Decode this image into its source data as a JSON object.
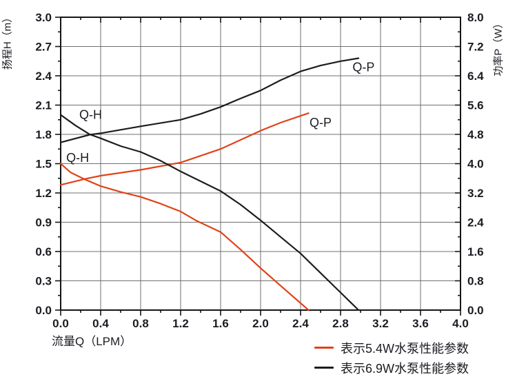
{
  "chart_data": {
    "type": "line",
    "title": "",
    "grid": true,
    "legend_position": "bottom-right",
    "x_axis": {
      "label": "流量Q（LPM）",
      "min": 0,
      "max": 4.0,
      "major_step": 0.4,
      "minor_step": 0.2,
      "tick_format_decimals": 1
    },
    "y_left_axis": {
      "label": "扬程H（m）",
      "min": 0,
      "max": 3.0,
      "major_step": 0.3,
      "minor_step": 0.15,
      "tick_format_decimals": 1
    },
    "y_right_axis": {
      "label": "功率P（W）",
      "min": 0,
      "max": 8.0,
      "major_step": 0.8,
      "minor_step": 0.4,
      "tick_format_decimals": 1
    },
    "series": [
      {
        "id": "qh-54w",
        "name": "5.4W pump Q-H",
        "axis": "left",
        "color": "#e24118",
        "curve_label": {
          "text": "Q-H",
          "x": 0.17,
          "y": 1.56
        },
        "points": [
          [
            0,
            1.5
          ],
          [
            0.1,
            1.41
          ],
          [
            0.24,
            1.34
          ],
          [
            0.4,
            1.27
          ],
          [
            0.6,
            1.21
          ],
          [
            0.8,
            1.16
          ],
          [
            1.0,
            1.09
          ],
          [
            1.2,
            1.01
          ],
          [
            1.35,
            0.92
          ],
          [
            1.6,
            0.8
          ],
          [
            1.8,
            0.62
          ],
          [
            2.0,
            0.43
          ],
          [
            2.2,
            0.25
          ],
          [
            2.48,
            0.0
          ]
        ]
      },
      {
        "id": "qp-54w",
        "name": "5.4W pump Q-P",
        "axis": "right",
        "color": "#e24118",
        "curve_label": {
          "text": "Q-P",
          "x": 2.6,
          "y": 5.12
        },
        "points": [
          [
            0,
            3.42
          ],
          [
            0.24,
            3.58
          ],
          [
            0.4,
            3.67
          ],
          [
            0.8,
            3.83
          ],
          [
            1.2,
            4.03
          ],
          [
            1.6,
            4.4
          ],
          [
            1.8,
            4.65
          ],
          [
            2.0,
            4.9
          ],
          [
            2.2,
            5.12
          ],
          [
            2.48,
            5.38
          ]
        ]
      },
      {
        "id": "qh-69w",
        "name": "6.9W pump Q-H",
        "axis": "left",
        "color": "#1c1c1e",
        "curve_label": {
          "text": "Q-H",
          "x": 0.3,
          "y": 2.0
        },
        "points": [
          [
            0,
            2.0
          ],
          [
            0.15,
            1.89
          ],
          [
            0.29,
            1.8
          ],
          [
            0.4,
            1.76
          ],
          [
            0.6,
            1.68
          ],
          [
            0.8,
            1.62
          ],
          [
            1.0,
            1.53
          ],
          [
            1.2,
            1.42
          ],
          [
            1.4,
            1.32
          ],
          [
            1.6,
            1.22
          ],
          [
            1.8,
            1.08
          ],
          [
            2.0,
            0.92
          ],
          [
            2.2,
            0.75
          ],
          [
            2.4,
            0.58
          ],
          [
            2.6,
            0.38
          ],
          [
            2.8,
            0.18
          ],
          [
            2.98,
            0.0
          ]
        ]
      },
      {
        "id": "qp-69w",
        "name": "6.9W pump Q-P",
        "axis": "right",
        "color": "#1c1c1e",
        "curve_label": {
          "text": "Q-P",
          "x": 3.03,
          "y": 6.64
        },
        "points": [
          [
            0,
            4.58
          ],
          [
            0.29,
            4.79
          ],
          [
            0.4,
            4.83
          ],
          [
            0.8,
            5.02
          ],
          [
            1.2,
            5.2
          ],
          [
            1.4,
            5.36
          ],
          [
            1.6,
            5.55
          ],
          [
            1.8,
            5.78
          ],
          [
            2.0,
            6.0
          ],
          [
            2.2,
            6.28
          ],
          [
            2.4,
            6.52
          ],
          [
            2.6,
            6.68
          ],
          [
            2.8,
            6.8
          ],
          [
            2.98,
            6.88
          ]
        ]
      }
    ],
    "legend": [
      {
        "series_color": "#e24118",
        "label": "表示5.4W水泵性能参数"
      },
      {
        "series_color": "#1c1c1e",
        "label": "表示6.9W水泵性能参数"
      }
    ]
  },
  "colors": {
    "red_series": "#e24118",
    "black_series": "#1c1c1e",
    "grid": "#6f6f6f",
    "axis": "#141414",
    "text": "#1b1c22"
  }
}
